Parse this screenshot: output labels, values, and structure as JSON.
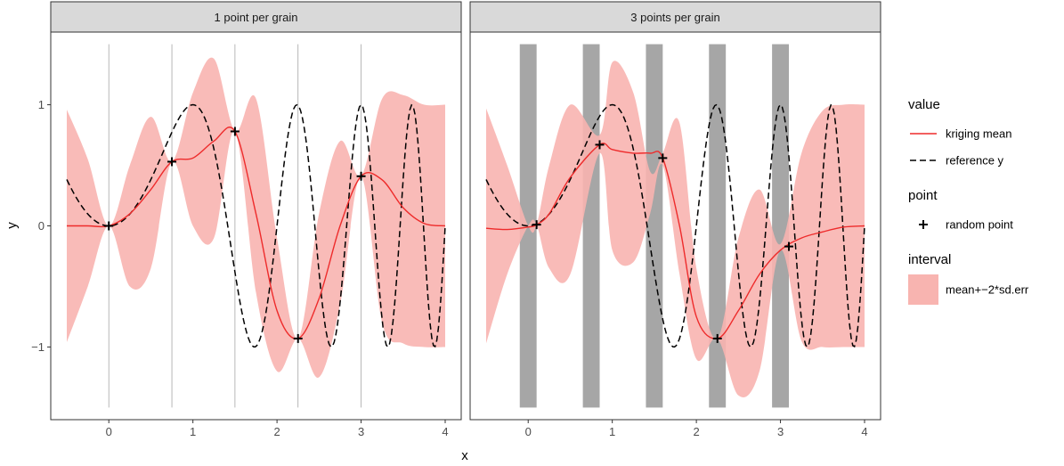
{
  "chart_data": {
    "type": "line",
    "xlabel": "x",
    "ylabel": "y",
    "xlim": [
      -0.5,
      4.0
    ],
    "ylim": [
      -1.6,
      1.6
    ],
    "x_ticks": [
      0,
      1,
      2,
      3,
      4
    ],
    "x_tick_labels": [
      "0",
      "1",
      "2",
      "3",
      "4"
    ],
    "y_ticks": [
      -1,
      0,
      1
    ],
    "y_tick_labels": [
      "−1",
      "0",
      "1"
    ],
    "grid": false,
    "legend_placement": "right",
    "legend": {
      "groups": [
        {
          "title": "value",
          "items": [
            {
              "label": "kriging mean",
              "kind": "line",
              "color": "#ee2b2b",
              "dash": "solid"
            },
            {
              "label": "reference y",
              "kind": "line",
              "color": "#000000",
              "dash": "dashed"
            }
          ]
        },
        {
          "title": "point",
          "items": [
            {
              "label": "random point",
              "kind": "cross",
              "color": "#000000"
            }
          ]
        },
        {
          "title": "interval",
          "items": [
            {
              "label": "mean+−2*sd.err",
              "kind": "fill",
              "color": "#f8b4b0"
            }
          ]
        }
      ]
    },
    "colors": {
      "kriging_mean": "#ee2b2b",
      "interval_fill": "#f8b4b0",
      "reference": "#000000",
      "grain_band": "#a6a6a6",
      "grain_line": "#a6a6a6",
      "strip_bg": "#d9d9d9"
    },
    "panels": [
      {
        "title": "1 point per grain",
        "grain_style": "line",
        "grains": [
          0.0,
          0.75,
          1.5,
          2.25,
          3.0
        ],
        "grain_y_range": [
          -1.5,
          1.5
        ],
        "random_points": {
          "x": [
            0.0,
            0.75,
            1.5,
            2.25,
            3.0
          ],
          "y": [
            0.0,
            0.53,
            0.78,
            -0.93,
            0.41
          ]
        },
        "kriging_mean": {
          "x": [
            -0.5,
            -0.25,
            0.0,
            0.25,
            0.5,
            0.75,
            1.0,
            1.25,
            1.5,
            1.75,
            2.0,
            2.25,
            2.5,
            2.75,
            3.0,
            3.25,
            3.5,
            3.75,
            4.0
          ],
          "y": [
            0.0,
            0.0,
            0.0,
            0.1,
            0.3,
            0.53,
            0.56,
            0.7,
            0.78,
            0.1,
            -0.7,
            -0.93,
            -0.6,
            0.0,
            0.41,
            0.38,
            0.15,
            0.02,
            0.0
          ]
        },
        "interval_lower": [
          -0.96,
          -0.5,
          0.0,
          -0.5,
          -0.35,
          0.53,
          0.0,
          -0.1,
          0.78,
          -0.55,
          -1.2,
          -0.93,
          -1.25,
          -0.65,
          0.41,
          -0.8,
          -0.97,
          -1.0,
          -1.0
        ],
        "interval_upper": [
          0.96,
          0.55,
          0.0,
          0.5,
          0.9,
          0.53,
          1.1,
          1.38,
          0.78,
          1.05,
          -0.1,
          -0.93,
          0.1,
          0.7,
          0.41,
          1.05,
          1.08,
          1.0,
          1.0
        ]
      },
      {
        "title": "3 points per grain",
        "grain_style": "band",
        "grains": [
          0.0,
          0.75,
          1.5,
          2.25,
          3.0
        ],
        "grain_width": 0.2,
        "grain_y_range": [
          -1.5,
          1.5
        ],
        "random_points": {
          "x": [
            0.1,
            0.85,
            1.6,
            2.25,
            3.1
          ],
          "y": [
            0.01,
            0.67,
            0.56,
            -0.93,
            -0.17
          ]
        },
        "kriging_mean": {
          "x": [
            -0.5,
            -0.25,
            0.0,
            0.1,
            0.25,
            0.5,
            0.85,
            1.0,
            1.25,
            1.45,
            1.6,
            1.8,
            2.0,
            2.25,
            2.5,
            2.75,
            3.0,
            3.25,
            3.5,
            3.75,
            4.0
          ],
          "y": [
            -0.02,
            -0.03,
            -0.01,
            0.01,
            0.1,
            0.4,
            0.67,
            0.63,
            0.6,
            0.6,
            0.56,
            0.0,
            -0.75,
            -0.93,
            -0.7,
            -0.4,
            -0.2,
            -0.1,
            -0.05,
            -0.01,
            0.0
          ]
        },
        "interval_lower": [
          -0.97,
          -0.4,
          0.0,
          0.01,
          -0.35,
          -0.4,
          0.6,
          -0.2,
          -0.3,
          0.1,
          0.5,
          -0.4,
          -1.1,
          -0.93,
          -1.4,
          -1.2,
          -0.2,
          -0.95,
          -1.0,
          -1.0,
          -1.0
        ],
        "interval_upper": [
          0.97,
          0.5,
          0.0,
          0.01,
          0.5,
          1.0,
          0.75,
          1.35,
          1.1,
          0.45,
          0.6,
          0.85,
          -0.35,
          -0.93,
          -0.1,
          0.3,
          -0.15,
          0.6,
          0.95,
          1.0,
          1.0
        ]
      }
    ]
  }
}
